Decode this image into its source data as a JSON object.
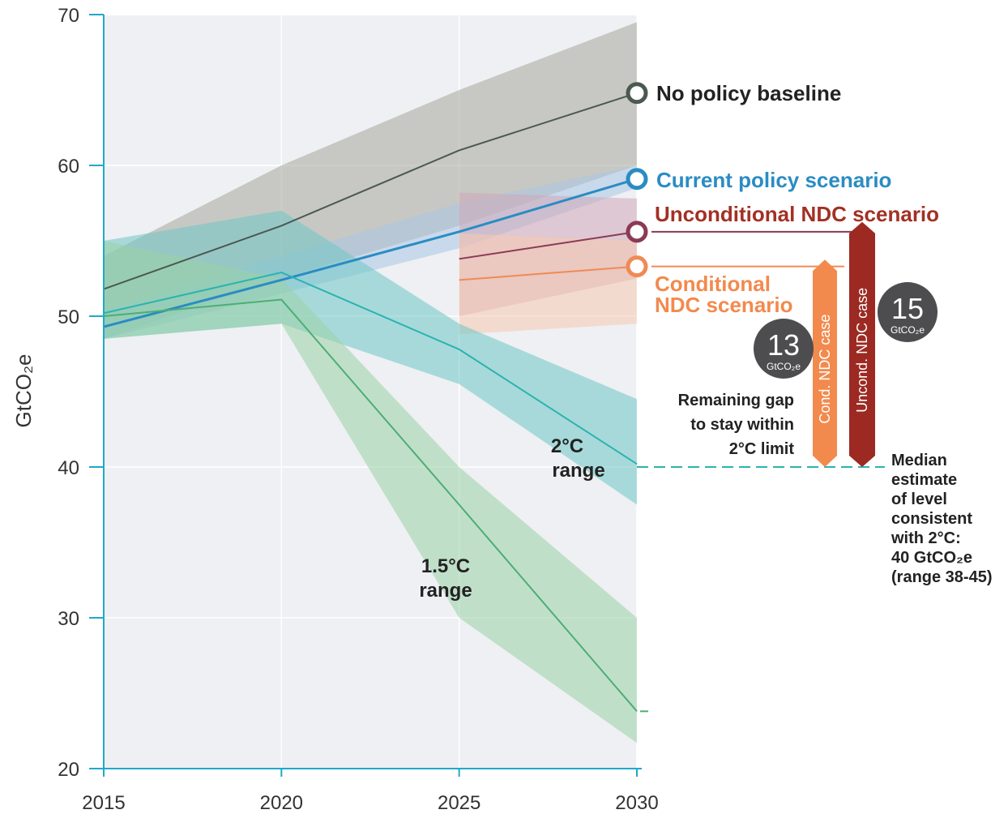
{
  "chart_data": {
    "type": "area",
    "ylabel": "GtCO₂e",
    "ylim": [
      20,
      70
    ],
    "yticks": [
      20,
      30,
      40,
      50,
      60,
      70
    ],
    "xlim": [
      2015,
      2030
    ],
    "xticks": [
      2015,
      2020,
      2025,
      2030
    ],
    "grid": true,
    "bands": [
      {
        "key": "baseline",
        "x": [
          2015,
          2020,
          2025,
          2030
        ],
        "low": [
          48.5,
          52.5,
          56,
          60
        ],
        "high": [
          54,
          60,
          65,
          69.5
        ],
        "color": "#a7a79b"
      },
      {
        "key": "current",
        "x": [
          2015,
          2020,
          2025,
          2030
        ],
        "low": [
          48.5,
          51.5,
          54.5,
          58.5
        ],
        "high": [
          50.5,
          54,
          57.5,
          60
        ],
        "color": "#a9c7e4"
      },
      {
        "key": "uncond",
        "x": [
          2025,
          2030
        ],
        "low": [
          50,
          52.5
        ],
        "high": [
          58.2,
          57.8
        ],
        "color": "#cfa8b8"
      },
      {
        "key": "cond",
        "x": [
          2025,
          2030
        ],
        "low": [
          48.8,
          49.5
        ],
        "high": [
          55.5,
          55
        ],
        "color": "#f5c9b0"
      },
      {
        "key": "two",
        "x": [
          2015,
          2020,
          2025,
          2030
        ],
        "low": [
          48.5,
          49.5,
          45.5,
          37.5
        ],
        "high": [
          55,
          57,
          49.5,
          44.5
        ],
        "color": "#70c7c5"
      },
      {
        "key": "onefive",
        "x": [
          2015,
          2020,
          2025,
          2030
        ],
        "low": [
          48.5,
          49.5,
          30,
          21.7
        ],
        "high": [
          55,
          52.5,
          40,
          30
        ],
        "color": "#9ad1a6"
      }
    ],
    "series": [
      {
        "key": "baseline",
        "name": "No policy baseline",
        "x": [
          2015,
          2020,
          2025,
          2030
        ],
        "y": [
          51.8,
          56,
          61,
          64.8
        ],
        "color": "#4a5a51"
      },
      {
        "key": "current",
        "name": "Current policy scenario",
        "x": [
          2015,
          2020,
          2025,
          2030
        ],
        "y": [
          49.3,
          52.4,
          55.6,
          59.1
        ],
        "color": "#2a8cc3"
      },
      {
        "key": "uncond",
        "name": "Unconditional NDC scenario",
        "x": [
          2025,
          2030
        ],
        "y": [
          53.8,
          55.6
        ],
        "color": "#8b3a55"
      },
      {
        "key": "cond",
        "name": "Conditional NDC scenario",
        "x": [
          2025,
          2030
        ],
        "y": [
          52.4,
          53.3
        ],
        "color": "#f08a55"
      },
      {
        "key": "two",
        "name": "2°C range",
        "x": [
          2015,
          2020,
          2025,
          2030
        ],
        "y": [
          50.2,
          52.9,
          47.8,
          40.2
        ],
        "color": "#2ab4b0"
      },
      {
        "key": "onefive",
        "name": "1.5°C range",
        "x": [
          2015,
          2020,
          2025,
          2030
        ],
        "y": [
          50.0,
          51.1,
          37.5,
          23.8
        ],
        "color": "#4cae74"
      }
    ],
    "endpoints": [
      {
        "key": "baseline",
        "y": 64.8,
        "color": "#4a5a51"
      },
      {
        "key": "current",
        "y": 59.1,
        "color": "#2a8cc3"
      },
      {
        "key": "uncond",
        "y": 55.6,
        "color": "#8b3a55"
      },
      {
        "key": "cond",
        "y": 53.3,
        "color": "#f08a55"
      }
    ],
    "labels": {
      "baseline": "No policy baseline",
      "current": "Current policy scenario",
      "uncond": "Unconditional NDC scenario",
      "cond_line1": "Conditional",
      "cond_line2": "NDC scenario",
      "two_line1": "2°C",
      "two_line2": "range",
      "onefive_line1": "1.5°C",
      "onefive_line2": "range"
    },
    "gap": {
      "median_level": 40,
      "cond_bar": {
        "label": "Cond. NDC case",
        "from": 40,
        "to": 53,
        "value": "13",
        "unit": "GtCO₂e",
        "color": "#f28a4e"
      },
      "uncond_bar": {
        "label": "Uncond. NDC case",
        "from": 40,
        "to": 55.5,
        "value": "15",
        "unit": "GtCO₂e",
        "color": "#9c2a22"
      },
      "badge_color": "#4d4d4f",
      "gap_text": [
        "Remaining gap",
        "to stay within",
        "2°C limit"
      ],
      "median_text": [
        "Median",
        "estimate",
        "of level",
        "consistent",
        "with 2°C:"
      ],
      "median_value": "40 GtCO₂e",
      "median_range": "(range 38-45)",
      "median_value_color": "#2ab4b0",
      "onefive_end": 23.8
    }
  }
}
